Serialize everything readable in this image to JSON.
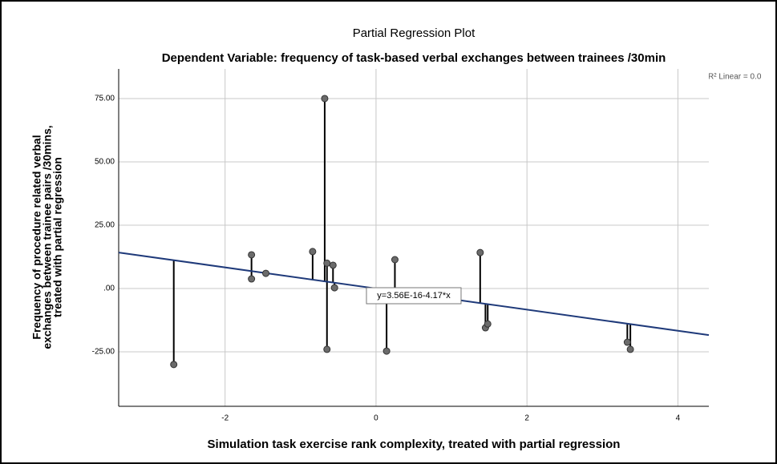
{
  "chart_data": {
    "type": "scatter",
    "title": "Partial Regression Plot",
    "subtitle": "Dependent Variable: frequency of task-based verbal exchanges between trainees /30min",
    "xlabel": "Simulation task exercise rank complexity, treated with partial regression",
    "ylabel": [
      "Frequency of procedure related verbal",
      "exchanges between trainee pairs /30mins,",
      "treated with partial regression"
    ],
    "x": [
      -2.68,
      -1.65,
      -1.65,
      -1.46,
      -0.84,
      -0.68,
      -0.65,
      -0.65,
      -0.57,
      -0.55,
      0.14,
      0.25,
      1.38,
      1.45,
      1.48,
      3.33,
      3.37
    ],
    "values": [
      -30,
      13.3,
      3.8,
      6,
      14.6,
      75,
      10,
      -24,
      9.2,
      0.3,
      -24.7,
      11.4,
      14.2,
      -15.5,
      -14,
      -21.2,
      -24
    ],
    "color": "#6b6b6b",
    "fit": {
      "intercept": 3.56e-16,
      "slope": -4.17,
      "color": "#1f3a7a",
      "label": "y=3.56E-16-4.17*x"
    },
    "annotation": "R² Linear = 0.0",
    "xlim": [
      -3.41,
      4.41
    ],
    "ylim": [
      -46.5,
      86.7
    ],
    "xticks": [
      -2,
      0,
      2,
      4
    ],
    "yticks": [
      {
        "value": -25,
        "label": "-25.00"
      },
      {
        "value": 0,
        "label": ".00"
      },
      {
        "value": 25,
        "label": "25.00"
      },
      {
        "value": 50,
        "label": "50.00"
      },
      {
        "value": 75,
        "label": "75.00"
      }
    ],
    "grid": true
  }
}
